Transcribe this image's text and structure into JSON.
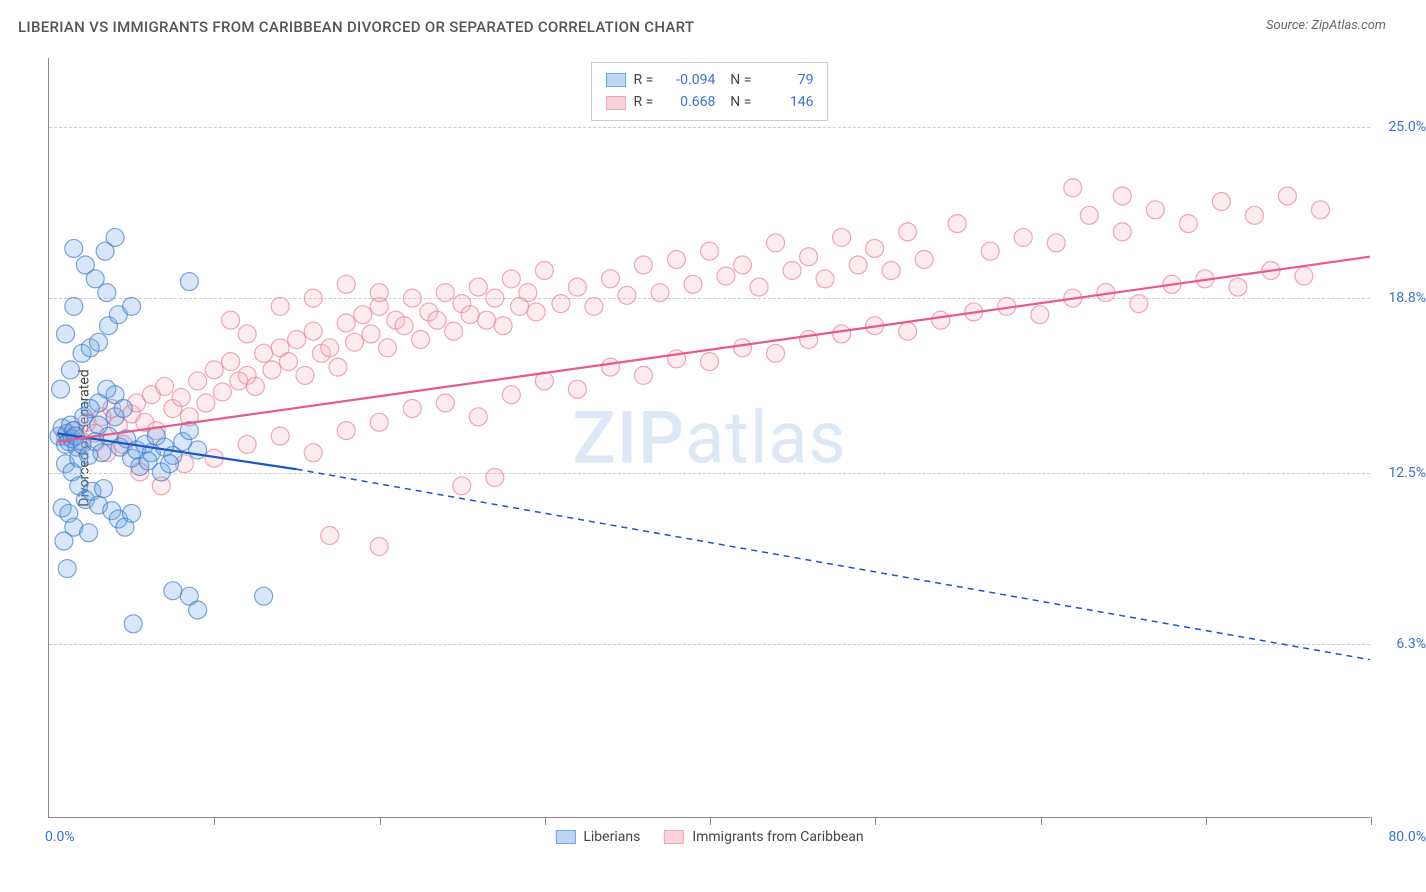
{
  "title": "LIBERIAN VS IMMIGRANTS FROM CARIBBEAN DIVORCED OR SEPARATED CORRELATION CHART",
  "source": "Source: ZipAtlas.com",
  "y_axis_label": "Divorced or Separated",
  "watermark": {
    "bold": "ZIP",
    "rest": "atlas"
  },
  "chart": {
    "type": "scatter",
    "background_color": "#ffffff",
    "grid_color": "#cccccc",
    "axis_color": "#888888",
    "xlim": [
      0,
      80
    ],
    "ylim": [
      0,
      27.5
    ],
    "x_min_label": "0.0%",
    "x_max_label": "80.0%",
    "x_tick_positions": [
      10,
      20,
      30,
      40,
      50,
      60,
      70,
      80
    ],
    "y_gridlines": [
      6.3,
      12.5,
      18.8,
      25.0
    ],
    "y_tick_labels": [
      "6.3%",
      "12.5%",
      "18.8%",
      "25.0%"
    ],
    "marker_radius": 9,
    "marker_fill_opacity": 0.28,
    "marker_stroke_opacity": 0.65,
    "line_width": 2.2,
    "dash_pattern": "6 5",
    "label_color": "#3b6fd4",
    "label_fontsize": 14
  },
  "series": [
    {
      "name": "Liberians",
      "color": "#6ea5e8",
      "stroke": "#3b78c4",
      "line_color": "#1a56c4",
      "R": "-0.094",
      "N": "79",
      "regression": {
        "x1": 0.5,
        "y1": 13.9,
        "x2_solid": 15,
        "y2_solid": 12.6,
        "x2_dash": 80,
        "y2_dash": 5.7
      },
      "points": [
        [
          0.6,
          13.8
        ],
        [
          0.8,
          14.1
        ],
        [
          1.0,
          13.5
        ],
        [
          1.1,
          13.9
        ],
        [
          1.2,
          13.6
        ],
        [
          1.3,
          14.2
        ],
        [
          1.4,
          13.7
        ],
        [
          1.5,
          14.0
        ],
        [
          1.6,
          13.8
        ],
        [
          1.7,
          13.4
        ],
        [
          0.8,
          11.2
        ],
        [
          1.2,
          11.0
        ],
        [
          1.5,
          10.5
        ],
        [
          0.9,
          10.0
        ],
        [
          1.1,
          9.0
        ],
        [
          1.0,
          12.8
        ],
        [
          1.4,
          12.5
        ],
        [
          1.8,
          13.0
        ],
        [
          2.0,
          13.5
        ],
        [
          2.4,
          13.1
        ],
        [
          2.8,
          13.6
        ],
        [
          3.2,
          13.2
        ],
        [
          3.6,
          13.8
        ],
        [
          4.0,
          14.5
        ],
        [
          4.3,
          13.4
        ],
        [
          4.7,
          13.7
        ],
        [
          5.0,
          13.0
        ],
        [
          5.3,
          13.3
        ],
        [
          5.8,
          13.5
        ],
        [
          6.2,
          13.2
        ],
        [
          6.5,
          13.8
        ],
        [
          7.0,
          13.4
        ],
        [
          7.5,
          13.1
        ],
        [
          8.1,
          13.6
        ],
        [
          8.5,
          14.0
        ],
        [
          9.0,
          13.3
        ],
        [
          0.7,
          15.5
        ],
        [
          1.3,
          16.2
        ],
        [
          2.0,
          16.8
        ],
        [
          2.5,
          17.0
        ],
        [
          3.0,
          17.2
        ],
        [
          3.6,
          17.8
        ],
        [
          4.2,
          18.2
        ],
        [
          5.0,
          18.5
        ],
        [
          2.2,
          20.0
        ],
        [
          2.8,
          19.5
        ],
        [
          3.5,
          19.0
        ],
        [
          1.5,
          20.6
        ],
        [
          3.4,
          20.5
        ],
        [
          4.0,
          21.0
        ],
        [
          8.5,
          19.4
        ],
        [
          3.0,
          15.0
        ],
        [
          3.5,
          15.5
        ],
        [
          4.0,
          15.3
        ],
        [
          4.5,
          14.8
        ],
        [
          1.8,
          12.0
        ],
        [
          2.2,
          11.5
        ],
        [
          2.6,
          11.8
        ],
        [
          3.0,
          11.3
        ],
        [
          3.3,
          11.9
        ],
        [
          3.8,
          11.1
        ],
        [
          4.2,
          10.8
        ],
        [
          4.6,
          10.5
        ],
        [
          5.0,
          11.0
        ],
        [
          1.0,
          17.5
        ],
        [
          1.5,
          18.5
        ],
        [
          5.5,
          12.7
        ],
        [
          6.0,
          12.9
        ],
        [
          6.8,
          12.5
        ],
        [
          7.3,
          12.8
        ],
        [
          2.4,
          10.3
        ],
        [
          8.5,
          8.0
        ],
        [
          9.0,
          7.5
        ],
        [
          7.5,
          8.2
        ],
        [
          13.0,
          8.0
        ],
        [
          5.1,
          7.0
        ],
        [
          2.1,
          14.5
        ],
        [
          2.5,
          14.8
        ],
        [
          3.0,
          14.2
        ]
      ]
    },
    {
      "name": "Immigrants from Caribbean",
      "color": "#f5b7c6",
      "stroke": "#e87a97",
      "line_color": "#e85a85",
      "R": "0.668",
      "N": "146",
      "regression": {
        "x1": 0.5,
        "y1": 13.6,
        "x2_solid": 80,
        "y2_solid": 20.3,
        "x2_dash": 80,
        "y2_dash": 20.3
      },
      "points": [
        [
          1.0,
          13.8
        ],
        [
          1.5,
          14.0
        ],
        [
          2.0,
          13.6
        ],
        [
          2.3,
          14.3
        ],
        [
          2.8,
          13.9
        ],
        [
          3.2,
          14.5
        ],
        [
          3.5,
          13.2
        ],
        [
          3.8,
          14.8
        ],
        [
          4.2,
          14.2
        ],
        [
          4.5,
          13.5
        ],
        [
          5.0,
          14.6
        ],
        [
          5.3,
          15.0
        ],
        [
          5.8,
          14.3
        ],
        [
          6.2,
          15.3
        ],
        [
          6.5,
          14.0
        ],
        [
          7.0,
          15.6
        ],
        [
          7.5,
          14.8
        ],
        [
          8.0,
          15.2
        ],
        [
          8.5,
          14.5
        ],
        [
          9.0,
          15.8
        ],
        [
          9.5,
          15.0
        ],
        [
          10.0,
          16.2
        ],
        [
          10.5,
          15.4
        ],
        [
          11.0,
          16.5
        ],
        [
          11.5,
          15.8
        ],
        [
          12.0,
          16.0
        ],
        [
          12.5,
          15.6
        ],
        [
          13.0,
          16.8
        ],
        [
          13.5,
          16.2
        ],
        [
          14.0,
          17.0
        ],
        [
          14.5,
          16.5
        ],
        [
          15.0,
          17.3
        ],
        [
          15.5,
          16.0
        ],
        [
          16.0,
          17.6
        ],
        [
          16.5,
          16.8
        ],
        [
          17.0,
          17.0
        ],
        [
          17.5,
          16.3
        ],
        [
          18.0,
          17.9
        ],
        [
          18.5,
          17.2
        ],
        [
          19.0,
          18.2
        ],
        [
          19.5,
          17.5
        ],
        [
          20.0,
          18.5
        ],
        [
          20.5,
          17.0
        ],
        [
          21.0,
          18.0
        ],
        [
          21.5,
          17.8
        ],
        [
          22.0,
          18.8
        ],
        [
          22.5,
          17.3
        ],
        [
          23.0,
          18.3
        ],
        [
          23.5,
          18.0
        ],
        [
          24.0,
          19.0
        ],
        [
          24.5,
          17.6
        ],
        [
          25.0,
          18.6
        ],
        [
          25.5,
          18.2
        ],
        [
          26.0,
          19.2
        ],
        [
          26.5,
          18.0
        ],
        [
          27.0,
          18.8
        ],
        [
          27.5,
          17.8
        ],
        [
          28.0,
          19.5
        ],
        [
          28.5,
          18.5
        ],
        [
          29.0,
          19.0
        ],
        [
          29.5,
          18.3
        ],
        [
          30.0,
          19.8
        ],
        [
          31.0,
          18.6
        ],
        [
          32.0,
          19.2
        ],
        [
          33.0,
          18.5
        ],
        [
          34.0,
          19.5
        ],
        [
          35.0,
          18.9
        ],
        [
          36.0,
          20.0
        ],
        [
          37.0,
          19.0
        ],
        [
          38.0,
          20.2
        ],
        [
          39.0,
          19.3
        ],
        [
          40.0,
          20.5
        ],
        [
          41.0,
          19.6
        ],
        [
          42.0,
          20.0
        ],
        [
          43.0,
          19.2
        ],
        [
          44.0,
          20.8
        ],
        [
          45.0,
          19.8
        ],
        [
          46.0,
          20.3
        ],
        [
          47.0,
          19.5
        ],
        [
          48.0,
          21.0
        ],
        [
          49.0,
          20.0
        ],
        [
          50.0,
          20.6
        ],
        [
          51.0,
          19.8
        ],
        [
          52.0,
          21.2
        ],
        [
          53.0,
          20.2
        ],
        [
          55.0,
          21.5
        ],
        [
          57.0,
          20.5
        ],
        [
          59.0,
          21.0
        ],
        [
          61.0,
          20.8
        ],
        [
          63.0,
          21.8
        ],
        [
          65.0,
          21.2
        ],
        [
          67.0,
          22.0
        ],
        [
          69.0,
          21.5
        ],
        [
          71.0,
          22.3
        ],
        [
          73.0,
          21.8
        ],
        [
          75.0,
          22.5
        ],
        [
          77.0,
          22.0
        ],
        [
          5.5,
          12.5
        ],
        [
          6.8,
          12.0
        ],
        [
          8.2,
          12.8
        ],
        [
          10.0,
          13.0
        ],
        [
          12.0,
          13.5
        ],
        [
          14.0,
          13.8
        ],
        [
          16.0,
          13.2
        ],
        [
          18.0,
          14.0
        ],
        [
          20.0,
          14.3
        ],
        [
          22.0,
          14.8
        ],
        [
          24.0,
          15.0
        ],
        [
          26.0,
          14.5
        ],
        [
          28.0,
          15.3
        ],
        [
          30.0,
          15.8
        ],
        [
          32.0,
          15.5
        ],
        [
          34.0,
          16.3
        ],
        [
          36.0,
          16.0
        ],
        [
          38.0,
          16.6
        ],
        [
          40.0,
          16.5
        ],
        [
          42.0,
          17.0
        ],
        [
          44.0,
          16.8
        ],
        [
          46.0,
          17.3
        ],
        [
          48.0,
          17.5
        ],
        [
          50.0,
          17.8
        ],
        [
          52.0,
          17.6
        ],
        [
          54.0,
          18.0
        ],
        [
          56.0,
          18.3
        ],
        [
          58.0,
          18.5
        ],
        [
          60.0,
          18.2
        ],
        [
          62.0,
          18.8
        ],
        [
          64.0,
          19.0
        ],
        [
          66.0,
          18.6
        ],
        [
          68.0,
          19.3
        ],
        [
          70.0,
          19.5
        ],
        [
          72.0,
          19.2
        ],
        [
          74.0,
          19.8
        ],
        [
          76.0,
          19.6
        ],
        [
          17.0,
          10.2
        ],
        [
          20.0,
          9.8
        ],
        [
          25.0,
          12.0
        ],
        [
          27.0,
          12.3
        ],
        [
          14.0,
          18.5
        ],
        [
          16.0,
          18.8
        ],
        [
          18.0,
          19.3
        ],
        [
          20.0,
          19.0
        ],
        [
          11.0,
          18.0
        ],
        [
          12.0,
          17.5
        ],
        [
          62.0,
          22.8
        ],
        [
          65.0,
          22.5
        ]
      ]
    }
  ],
  "bottom_legend": [
    {
      "label": "Liberians",
      "fill": "#bdd5f2",
      "stroke": "#6ea5e8"
    },
    {
      "label": "Immigrants from Caribbean",
      "fill": "#f9d2dc",
      "stroke": "#f0a5b8"
    }
  ]
}
